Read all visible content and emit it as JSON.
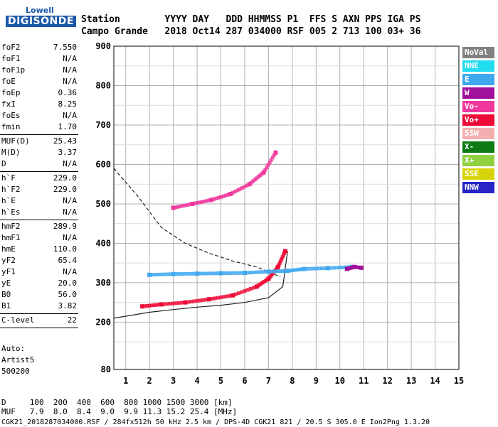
{
  "logo": {
    "top": "Lowell",
    "main": "DIGISONDE"
  },
  "header": {
    "row1": "Station        YYYY DAY   DDD HHMMSS P1  FFS S AXN PPS IGA PS",
    "row2": "Campo Grande   2018 Oct14 287 034000 RSF 005 2 713 100 03+ 36"
  },
  "params_a": [
    {
      "n": "foF2",
      "v": "7.550"
    },
    {
      "n": "foF1",
      "v": "N/A"
    },
    {
      "n": "foF1p",
      "v": "N/A"
    },
    {
      "n": "foE",
      "v": "N/A"
    },
    {
      "n": "foEp",
      "v": "0.36"
    },
    {
      "n": "fxI",
      "v": "8.25"
    },
    {
      "n": "foEs",
      "v": "N/A"
    },
    {
      "n": "fmin",
      "v": "1.70"
    }
  ],
  "params_b": [
    {
      "n": "MUF(D)",
      "v": "25.43"
    },
    {
      "n": "M(D)",
      "v": "3.37"
    },
    {
      "n": "D",
      "v": "N/A"
    }
  ],
  "params_c": [
    {
      "n": "h`F",
      "v": "229.0"
    },
    {
      "n": "h`F2",
      "v": "229.0"
    },
    {
      "n": "h`E",
      "v": "N/A"
    },
    {
      "n": "h`Es",
      "v": "N/A"
    }
  ],
  "params_d": [
    {
      "n": "hmF2",
      "v": "289.9"
    },
    {
      "n": "hmF1",
      "v": "N/A"
    },
    {
      "n": "hmE",
      "v": "110.0"
    },
    {
      "n": "yF2",
      "v": "65.4"
    },
    {
      "n": "yF1",
      "v": "N/A"
    },
    {
      "n": "yE",
      "v": "20.0"
    },
    {
      "n": "B0",
      "v": "56.0"
    },
    {
      "n": "B1",
      "v": "3.82"
    }
  ],
  "params_e": [
    {
      "n": "C-level",
      "v": "22"
    }
  ],
  "auto": {
    "line1": "Auto:",
    "line2": "Artist5",
    "line3": "500200"
  },
  "footer": {
    "row1": "D     100  200  400  600  800 1000 1500 3000 [km]",
    "row2": "MUF   7.9  8.0  8.4  9.0  9.9 11.3 15.2 25.4 [MHz]",
    "row3": "CGK21_2018287034000.RSF / 284fx512h 50 kHz 2.5 km / DPS-4D CGK21 821 / 20.5 S 305.0 E Ion2Png 1.3.20"
  },
  "legend": [
    {
      "label": "NoVal",
      "color": "#808080"
    },
    {
      "label": "NNE",
      "color": "#22dcf0"
    },
    {
      "label": "E",
      "color": "#3fa8f0"
    },
    {
      "label": "W",
      "color": "#a0109c"
    },
    {
      "label": "Vo-",
      "color": "#f0379c"
    },
    {
      "label": "Vo+",
      "color": "#ee0a36"
    },
    {
      "label": "SSW",
      "color": "#f4b0b0"
    },
    {
      "label": "X-",
      "color": "#0e7a14"
    },
    {
      "label": "X+",
      "color": "#8ed040"
    },
    {
      "label": "SSE",
      "color": "#d8d40c"
    },
    {
      "label": "NNW",
      "color": "#2824c8"
    }
  ],
  "chart_data": {
    "type": "scatter",
    "title": "",
    "xlabel": "",
    "ylabel": "",
    "xlim": [
      0.5,
      15
    ],
    "ylim": [
      80,
      900
    ],
    "x_ticks": [
      1,
      2,
      3,
      4,
      5,
      6,
      7,
      8,
      9,
      10,
      11,
      12,
      13,
      14,
      15
    ],
    "y_ticks": [
      80,
      200,
      300,
      400,
      500,
      600,
      700,
      800,
      900
    ],
    "grid": true,
    "series": [
      {
        "color": "#ee0a36",
        "x": [
          1.7,
          2.5,
          3.5,
          4.5,
          5.5,
          6.5,
          7.0,
          7.4,
          7.7
        ],
        "y": [
          240,
          245,
          250,
          258,
          268,
          290,
          310,
          340,
          380
        ]
      },
      {
        "color": "#f0379c",
        "x": [
          3.0,
          3.8,
          4.6,
          5.4,
          6.2,
          6.8,
          7.3
        ],
        "y": [
          490,
          500,
          510,
          525,
          550,
          580,
          630
        ]
      },
      {
        "color": "#3fa8f0",
        "x": [
          2.0,
          3.0,
          4.0,
          5.0,
          6.0,
          7.0,
          7.8,
          8.5,
          9.5,
          10.5
        ],
        "y": [
          320,
          322,
          323,
          324,
          325,
          328,
          330,
          335,
          337,
          340
        ]
      },
      {
        "color": "#a0109c",
        "x": [
          10.3,
          10.6,
          10.9
        ],
        "y": [
          335,
          340,
          338
        ]
      }
    ],
    "curves": [
      {
        "style": "dashed",
        "x": [
          0.5,
          1.5,
          2.5,
          3.5,
          4.5,
          5.5,
          6.5,
          7.5
        ],
        "y": [
          590,
          520,
          440,
          400,
          375,
          355,
          340,
          315
        ]
      },
      {
        "style": "solid",
        "x": [
          0.5,
          2,
          3,
          4,
          5,
          6,
          7,
          7.6,
          7.8
        ],
        "y": [
          210,
          225,
          232,
          238,
          243,
          250,
          262,
          290,
          380
        ]
      }
    ]
  }
}
